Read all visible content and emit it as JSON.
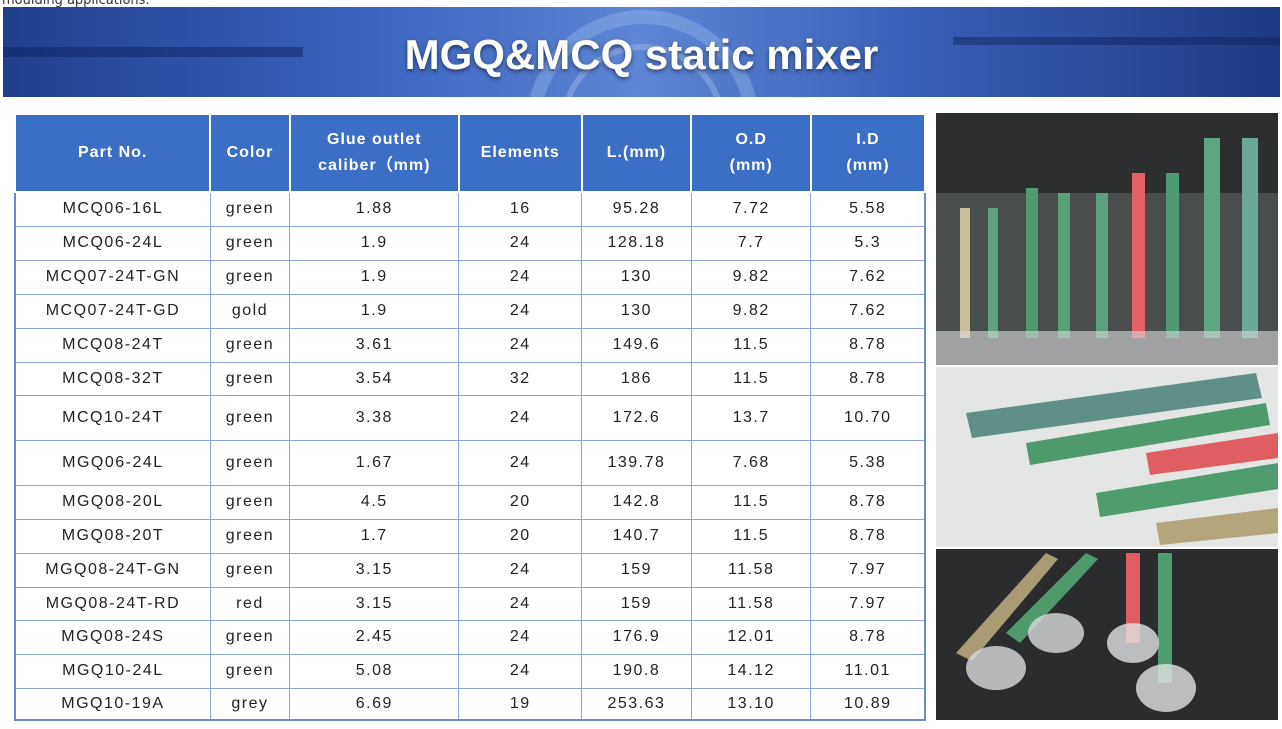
{
  "intro_fragment": "moulding applications.",
  "banner": {
    "title": "MGQ&MCQ static mixer"
  },
  "table": {
    "headers": [
      [
        "Part No."
      ],
      [
        "Color"
      ],
      [
        "Glue outlet",
        "caliber（mm)"
      ],
      [
        "Elements"
      ],
      [
        "L.(mm)"
      ],
      [
        "O.D",
        "(mm)"
      ],
      [
        "I.D",
        "(mm)"
      ]
    ],
    "rows": [
      [
        "MCQ06-16L",
        "green",
        "1.88",
        "16",
        "95.28",
        "7.72",
        "5.58"
      ],
      [
        "MCQ06-24L",
        "green",
        "1.9",
        "24",
        "128.18",
        "7.7",
        "5.3"
      ],
      [
        "MCQ07-24T-GN",
        "green",
        "1.9",
        "24",
        "130",
        "9.82",
        "7.62"
      ],
      [
        "MCQ07-24T-GD",
        "gold",
        "1.9",
        "24",
        "130",
        "9.82",
        "7.62"
      ],
      [
        "MCQ08-24T",
        "green",
        "3.61",
        "24",
        "149.6",
        "11.5",
        "8.78"
      ],
      [
        "MCQ08-32T",
        "green",
        "3.54",
        "32",
        "186",
        "11.5",
        "8.78"
      ],
      [
        "MCQ10-24T",
        "green",
        "3.38",
        "24",
        "172.6",
        "13.7",
        "10.70"
      ],
      [
        "MGQ06-24L",
        "green",
        "1.67",
        "24",
        "139.78",
        "7.68",
        "5.38"
      ],
      [
        "MGQ08-20L",
        "green",
        "4.5",
        "20",
        "142.8",
        "11.5",
        "8.78"
      ],
      [
        "MGQ08-20T",
        "green",
        "1.7",
        "20",
        "140.7",
        "11.5",
        "8.78"
      ],
      [
        "MGQ08-24T-GN",
        "green",
        "3.15",
        "24",
        "159",
        "11.58",
        "7.97"
      ],
      [
        "MGQ08-24T-RD",
        "red",
        "3.15",
        "24",
        "159",
        "11.58",
        "7.97"
      ],
      [
        "MGQ08-24S",
        "green",
        "2.45",
        "24",
        "176.9",
        "12.01",
        "8.78"
      ],
      [
        "MGQ10-24L",
        "green",
        "5.08",
        "24",
        "190.8",
        "14.12",
        "11.01"
      ],
      [
        "MGQ10-19A",
        "grey",
        "6.69",
        "19",
        "253.63",
        "13.10",
        "10.89"
      ]
    ]
  }
}
